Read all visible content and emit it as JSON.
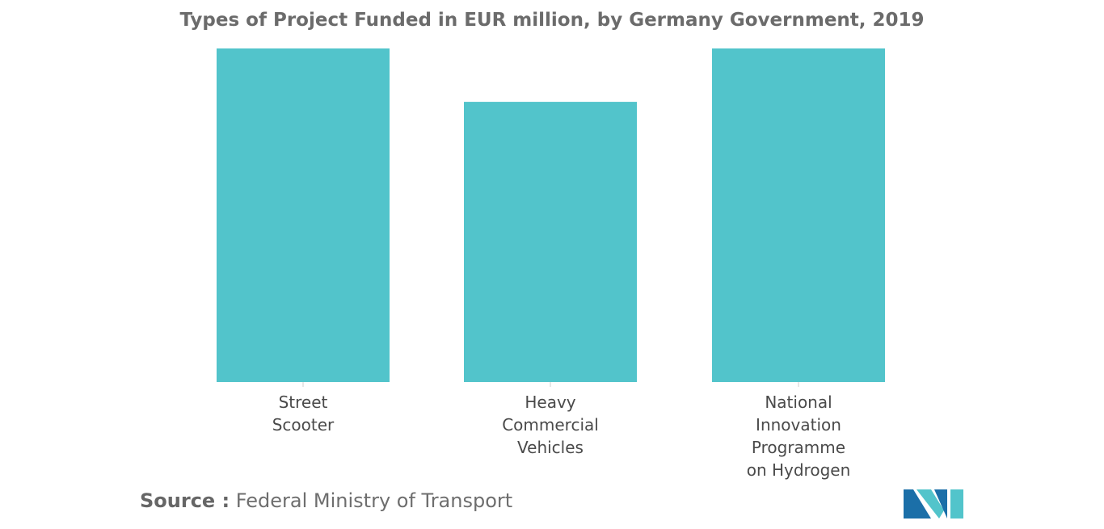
{
  "chart_data": {
    "type": "bar",
    "title": "Types of Project Funded in EUR million, by Germany Government, 2019",
    "categories": [
      [
        "Street",
        "Scooter"
      ],
      [
        "Heavy",
        "Commercial",
        "Vehicles"
      ],
      [
        "National",
        "Innovation",
        "Programme",
        "on Hydrogen"
      ]
    ],
    "values": [
      25,
      21,
      25
    ],
    "ylim": [
      0,
      25
    ],
    "grid": false,
    "legend": "none",
    "bar_color": "#52c4cb"
  },
  "source": {
    "prefix": "Source :",
    "text": "Federal Ministry of Transport"
  },
  "colors": {
    "logo_dark": "#1b6fa8",
    "logo_light": "#52c4cb"
  }
}
